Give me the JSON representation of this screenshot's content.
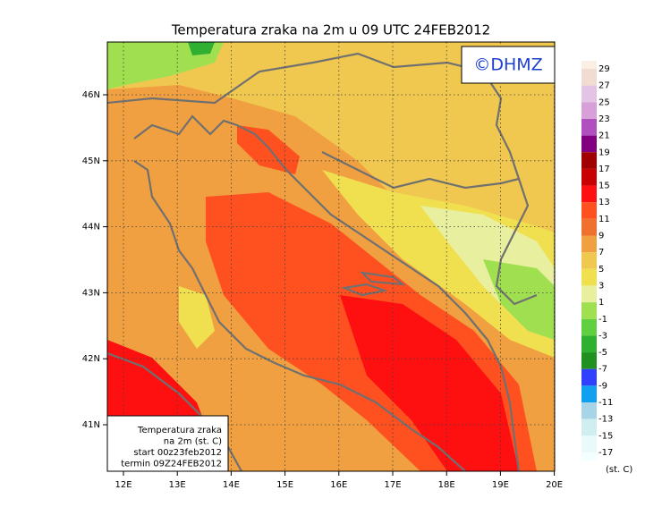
{
  "title": "Temperatura zraka na 2m u 09 UTC 24FEB2012",
  "logo": "©DHMZ",
  "axes": {
    "lat_labels": [
      "46N",
      "45N",
      "44N",
      "43N",
      "42N",
      "41N"
    ],
    "lon_labels": [
      "12E",
      "13E",
      "14E",
      "15E",
      "16E",
      "17E",
      "18E",
      "19E",
      "20E"
    ]
  },
  "info": [
    "Temperatura zraka",
    "na 2m (st. C)",
    "start 00z23feb2012",
    "termin 09Z24FEB2012"
  ],
  "colorbar": {
    "levels": [
      29,
      27,
      25,
      23,
      21,
      19,
      17,
      15,
      13,
      11,
      9,
      7,
      5,
      3,
      1,
      -1,
      -3,
      -5,
      -7,
      -9,
      -11,
      -13,
      -15,
      -17
    ],
    "colors": [
      "#fbeee2",
      "#f0dcd0",
      "#e4c4e4",
      "#d8a0d8",
      "#b050c0",
      "#800080",
      "#a00000",
      "#c80000",
      "#ff1010",
      "#ff5020",
      "#f07030",
      "#f0a040",
      "#f0c850",
      "#f0e050",
      "#e8f0a0",
      "#a0e050",
      "#60d040",
      "#30b030",
      "#209020",
      "#3040ff",
      "#10a0f0",
      "#a8d4e8",
      "#d0eef0",
      "#e8fafa",
      "#f4ffff"
    ],
    "unit": "(st. C)"
  }
}
